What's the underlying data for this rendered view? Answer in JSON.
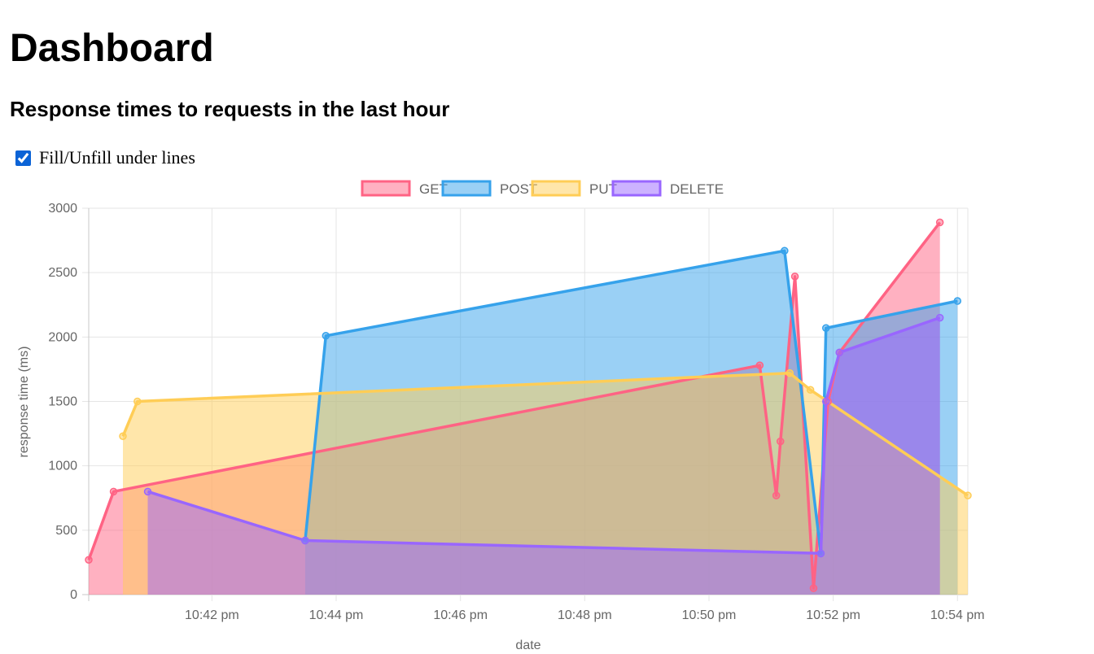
{
  "page": {
    "title": "Dashboard",
    "subtitle": "Response times to requests in the last hour",
    "fill_toggle_label": "Fill/Unfill under lines",
    "fill_checked": true
  },
  "chart_data": {
    "type": "line",
    "fill": true,
    "xlabel": "date",
    "ylabel": "response time (ms)",
    "ylim": [
      0,
      3000
    ],
    "yticks": [
      0,
      500,
      1000,
      1500,
      2000,
      2500,
      3000
    ],
    "xlim": [
      "10:40:01 pm",
      "10:54:10 pm"
    ],
    "xticks": [
      "10:42 pm",
      "10:44 pm",
      "10:46 pm",
      "10:48 pm",
      "10:50 pm",
      "10:52 pm",
      "10:54 pm"
    ],
    "grid": true,
    "legend_position": "top",
    "series": [
      {
        "name": "GET",
        "color": "#ff6384",
        "fill": "rgba(255,99,132,0.5)",
        "points": [
          [
            "10:40:01 pm",
            270
          ],
          [
            "10:40:25 pm",
            800
          ],
          [
            "10:50:49 pm",
            1780
          ],
          [
            "10:51:05 pm",
            770
          ],
          [
            "10:51:09 pm",
            1190
          ],
          [
            "10:51:23 pm",
            2470
          ],
          [
            "10:51:41 pm",
            50
          ],
          [
            "10:51:55 pm",
            1500
          ],
          [
            "10:52:06 pm",
            1880
          ],
          [
            "10:53:43 pm",
            2890
          ]
        ]
      },
      {
        "name": "POST",
        "color": "#36a2eb",
        "fill": "rgba(54,162,235,0.5)",
        "points": [
          [
            "10:43:30 pm",
            420
          ],
          [
            "10:43:50 pm",
            2010
          ],
          [
            "10:51:13 pm",
            2670
          ],
          [
            "10:51:48 pm",
            320
          ],
          [
            "10:51:53 pm",
            2070
          ],
          [
            "10:54:00 pm",
            2280
          ]
        ]
      },
      {
        "name": "PUT",
        "color": "#ffcd56",
        "fill": "rgba(255,205,86,0.5)",
        "points": [
          [
            "10:40:34 pm",
            1230
          ],
          [
            "10:40:48 pm",
            1500
          ],
          [
            "10:51:18 pm",
            1720
          ],
          [
            "10:51:38 pm",
            1590
          ],
          [
            "10:54:10 pm",
            770
          ]
        ]
      },
      {
        "name": "DELETE",
        "color": "#9966ff",
        "fill": "rgba(153,102,255,0.5)",
        "points": [
          [
            "10:40:58 pm",
            800
          ],
          [
            "10:43:30 pm",
            420
          ],
          [
            "10:51:48 pm",
            320
          ],
          [
            "10:51:53 pm",
            1500
          ],
          [
            "10:52:06 pm",
            1880
          ],
          [
            "10:53:43 pm",
            2150
          ]
        ]
      }
    ]
  }
}
